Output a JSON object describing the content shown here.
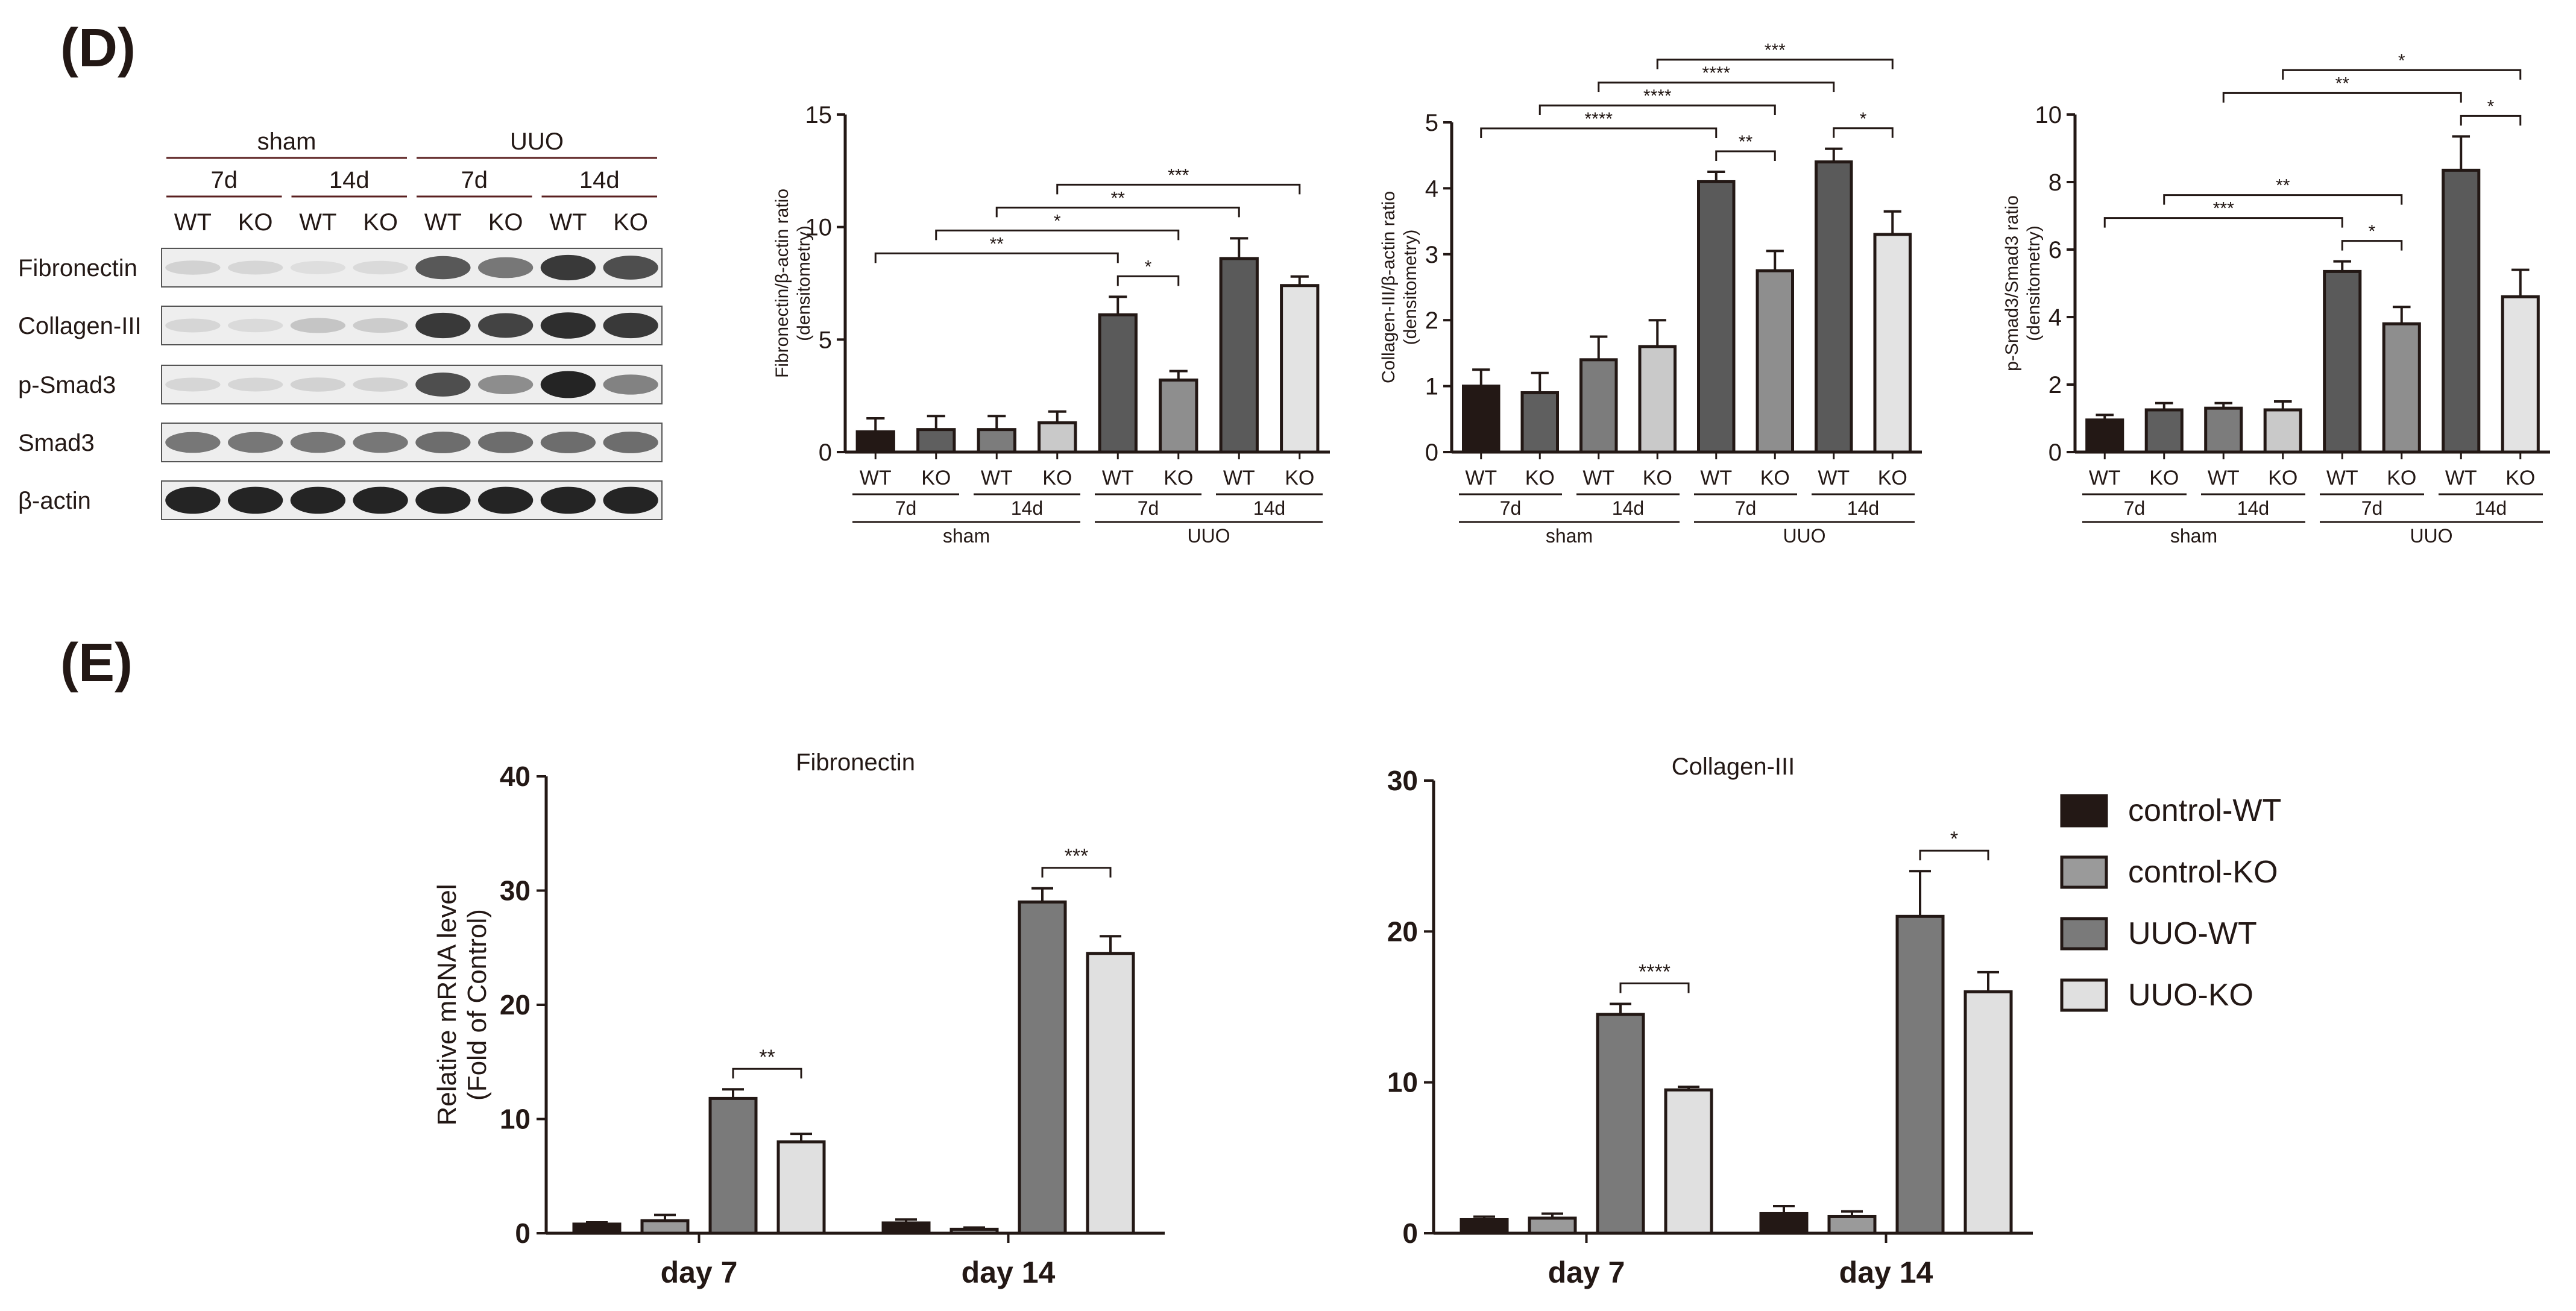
{
  "panels": {
    "d_label": "(D)",
    "e_label": "(E)"
  },
  "western_blot": {
    "group_labels": [
      "sham",
      "UUO"
    ],
    "time_labels": [
      "7d",
      "14d",
      "7d",
      "14d"
    ],
    "genotype_labels": [
      "WT",
      "KO",
      "WT",
      "KO",
      "WT",
      "KO",
      "WT",
      "KO"
    ],
    "rows": [
      {
        "label": "Fibronectin",
        "intensity": [
          0.12,
          0.1,
          0.06,
          0.08,
          0.7,
          0.55,
          0.85,
          0.75
        ]
      },
      {
        "label": "Collagen-III",
        "intensity": [
          0.1,
          0.08,
          0.18,
          0.15,
          0.85,
          0.8,
          0.9,
          0.85
        ]
      },
      {
        "label": "p-Smad3",
        "intensity": [
          0.1,
          0.1,
          0.12,
          0.12,
          0.75,
          0.45,
          0.95,
          0.5
        ]
      },
      {
        "label": "Smad3",
        "intensity": [
          0.55,
          0.55,
          0.55,
          0.55,
          0.6,
          0.6,
          0.6,
          0.6
        ]
      },
      {
        "label": "β-actin",
        "intensity": [
          0.95,
          0.95,
          0.95,
          0.95,
          0.95,
          0.95,
          0.95,
          0.95
        ]
      }
    ]
  },
  "colors": {
    "wt7": "#231815",
    "ko7": "#5e5e5e",
    "wt_sham14": "#808080",
    "ko_sham14": "#c8c8c8",
    "uuo_wt": "#5e5e5e",
    "uuo_ko": "#8d8d8d",
    "uuo_wt14": "#5e5e5e",
    "uuo_ko14": "#e3e3e3",
    "control_wt": "#231815",
    "control_ko": "#9a9a9a",
    "uuo_wt_e": "#7a7a7a",
    "uuo_ko_e": "#e0e0e0"
  },
  "chart_data": [
    {
      "type": "bar",
      "ylabel": "Fibronectin/β-actin ratio (densitometry)",
      "ylabel_lines": [
        "Fibronectin/β-actin ratio",
        "(densitometry)"
      ],
      "categories": [
        "WT",
        "KO",
        "WT",
        "KO",
        "WT",
        "KO",
        "WT",
        "KO"
      ],
      "time_labels": [
        "7d",
        "14d",
        "7d",
        "14d"
      ],
      "group_labels": [
        "sham",
        "UUO"
      ],
      "values": [
        0.9,
        1.0,
        1.0,
        1.3,
        6.1,
        3.2,
        8.6,
        7.4
      ],
      "errors": [
        0.6,
        0.6,
        0.6,
        0.5,
        0.8,
        0.4,
        0.9,
        0.4
      ],
      "ylim": [
        0,
        15
      ],
      "yticks": [
        "0",
        "5",
        "10",
        "15"
      ],
      "significance": [
        {
          "from": 0,
          "to": 4,
          "label": "**"
        },
        {
          "from": 1,
          "to": 5,
          "label": "*"
        },
        {
          "from": 4,
          "to": 5,
          "label": "*"
        },
        {
          "from": 2,
          "to": 6,
          "label": "**"
        },
        {
          "from": 3,
          "to": 7,
          "label": "***"
        }
      ]
    },
    {
      "type": "bar",
      "ylabel": "Collagen-III/β-actin ratio (densitometry)",
      "ylabel_lines": [
        "Collagen-III/β-actin ratio",
        "(densitometry)"
      ],
      "categories": [
        "WT",
        "KO",
        "WT",
        "KO",
        "WT",
        "KO",
        "WT",
        "KO"
      ],
      "time_labels": [
        "7d",
        "14d",
        "7d",
        "14d"
      ],
      "group_labels": [
        "sham",
        "UUO"
      ],
      "values": [
        1.0,
        0.9,
        1.4,
        1.6,
        4.1,
        2.75,
        4.4,
        3.3
      ],
      "errors": [
        0.25,
        0.3,
        0.35,
        0.4,
        0.15,
        0.3,
        0.2,
        0.35
      ],
      "ylim": [
        0,
        5
      ],
      "yticks": [
        "0",
        "1",
        "2",
        "3",
        "4",
        "5"
      ],
      "significance": [
        {
          "from": 0,
          "to": 4,
          "label": "****"
        },
        {
          "from": 1,
          "to": 5,
          "label": "****"
        },
        {
          "from": 2,
          "to": 6,
          "label": "****"
        },
        {
          "from": 3,
          "to": 7,
          "label": "***"
        },
        {
          "from": 4,
          "to": 5,
          "label": "**"
        },
        {
          "from": 6,
          "to": 7,
          "label": "*"
        }
      ]
    },
    {
      "type": "bar",
      "ylabel": "p-Smad3/Smad3 ratio (densitometry)",
      "ylabel_lines": [
        "p-Smad3/Smad3 ratio",
        "(densitometry)"
      ],
      "categories": [
        "WT",
        "KO",
        "WT",
        "KO",
        "WT",
        "KO",
        "WT",
        "KO"
      ],
      "time_labels": [
        "7d",
        "14d",
        "7d",
        "14d"
      ],
      "group_labels": [
        "sham",
        "UUO"
      ],
      "values": [
        0.95,
        1.25,
        1.3,
        1.25,
        5.35,
        3.8,
        8.35,
        4.6
      ],
      "errors": [
        0.15,
        0.2,
        0.15,
        0.25,
        0.3,
        0.5,
        1.0,
        0.8
      ],
      "ylim": [
        0,
        10
      ],
      "yticks": [
        "0",
        "2",
        "4",
        "6",
        "8",
        "10"
      ],
      "significance": [
        {
          "from": 0,
          "to": 4,
          "label": "***"
        },
        {
          "from": 1,
          "to": 5,
          "label": "**"
        },
        {
          "from": 4,
          "to": 5,
          "label": "*"
        },
        {
          "from": 2,
          "to": 6,
          "label": "**"
        },
        {
          "from": 3,
          "to": 7,
          "label": "*"
        },
        {
          "from": 6,
          "to": 7,
          "label": "*"
        }
      ]
    },
    {
      "type": "bar",
      "title": "Fibronectin",
      "ylabel": "Relative mRNA level (Fold of Control)",
      "ylabel_lines": [
        "Relative mRNA level",
        "(Fold of Control)"
      ],
      "categories": [
        "day 7",
        "day 14"
      ],
      "series": [
        {
          "name": "control-WT",
          "values": [
            0.8,
            0.9
          ],
          "errors": [
            0.15,
            0.3
          ]
        },
        {
          "name": "control-KO",
          "values": [
            1.1,
            0.35
          ],
          "errors": [
            0.5,
            0.15
          ]
        },
        {
          "name": "UUO-WT",
          "values": [
            11.8,
            29.0
          ],
          "errors": [
            0.8,
            1.2
          ]
        },
        {
          "name": "UUO-KO",
          "values": [
            8.0,
            24.5
          ],
          "errors": [
            0.7,
            1.5
          ]
        }
      ],
      "ylim": [
        0,
        40
      ],
      "yticks": [
        "0",
        "10",
        "20",
        "30",
        "40"
      ],
      "significance": [
        {
          "category": 0,
          "from": 2,
          "to": 3,
          "label": "**"
        },
        {
          "category": 1,
          "from": 2,
          "to": 3,
          "label": "***"
        }
      ]
    },
    {
      "type": "bar",
      "title": "Collagen-III",
      "ylabel": "",
      "categories": [
        "day 7",
        "day 14"
      ],
      "series": [
        {
          "name": "control-WT",
          "values": [
            0.9,
            1.3
          ],
          "errors": [
            0.2,
            0.5
          ]
        },
        {
          "name": "control-KO",
          "values": [
            1.0,
            1.1
          ],
          "errors": [
            0.3,
            0.35
          ]
        },
        {
          "name": "UUO-WT",
          "values": [
            14.5,
            21.0
          ],
          "errors": [
            0.7,
            3.0
          ]
        },
        {
          "name": "UUO-KO",
          "values": [
            9.5,
            16.0
          ],
          "errors": [
            0.2,
            1.3
          ]
        }
      ],
      "ylim": [
        0,
        30
      ],
      "yticks": [
        "0",
        "10",
        "20",
        "30"
      ],
      "significance": [
        {
          "category": 0,
          "from": 2,
          "to": 3,
          "label": "****"
        },
        {
          "category": 1,
          "from": 2,
          "to": 3,
          "label": "*"
        }
      ]
    }
  ],
  "legend": {
    "entries": [
      {
        "label": "control-WT",
        "color": "#231815"
      },
      {
        "label": "control-KO",
        "color": "#9a9a9a"
      },
      {
        "label": "UUO-WT",
        "color": "#7a7a7a"
      },
      {
        "label": "UUO-KO",
        "color": "#e0e0e0"
      }
    ]
  }
}
